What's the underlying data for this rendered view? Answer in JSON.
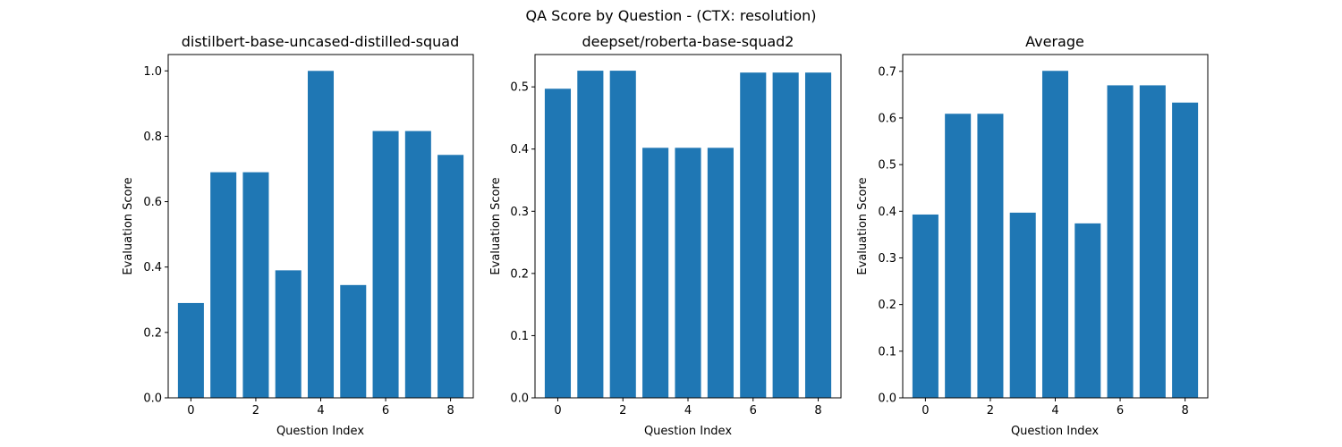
{
  "figure": {
    "suptitle": "QA Score by Question - (CTX: resolution)",
    "bar_color": "#1f77b4"
  },
  "chart_data": [
    {
      "type": "bar",
      "title": "distilbert-base-uncased-distilled-squad",
      "xlabel": "Question Index",
      "ylabel": "Evaluation Score",
      "categories": [
        0,
        1,
        2,
        3,
        4,
        5,
        6,
        7,
        8
      ],
      "values": [
        0.29,
        0.69,
        0.69,
        0.39,
        1.0,
        0.345,
        0.816,
        0.816,
        0.743
      ],
      "xlim": [
        -0.7,
        8.7
      ],
      "ylim": [
        0,
        1.05
      ],
      "xticks": [
        0,
        2,
        4,
        6,
        8
      ],
      "yticks": [
        0.0,
        0.2,
        0.4,
        0.6,
        0.8,
        1.0
      ],
      "ytick_labels": [
        "0.0",
        "0.2",
        "0.4",
        "0.6",
        "0.8",
        "1.0"
      ],
      "grid": false,
      "legend": false
    },
    {
      "type": "bar",
      "title": "deepset/roberta-base-squad2",
      "xlabel": "Question Index",
      "ylabel": "Evaluation Score",
      "categories": [
        0,
        1,
        2,
        3,
        4,
        5,
        6,
        7,
        8
      ],
      "values": [
        0.497,
        0.526,
        0.526,
        0.402,
        0.402,
        0.402,
        0.523,
        0.523,
        0.523
      ],
      "xlim": [
        -0.7,
        8.7
      ],
      "ylim": [
        0,
        0.552
      ],
      "xticks": [
        0,
        2,
        4,
        6,
        8
      ],
      "yticks": [
        0.0,
        0.1,
        0.2,
        0.3,
        0.4,
        0.5
      ],
      "ytick_labels": [
        "0.0",
        "0.1",
        "0.2",
        "0.3",
        "0.4",
        "0.5"
      ],
      "grid": false,
      "legend": false
    },
    {
      "type": "bar",
      "title": "Average",
      "xlabel": "Question Index",
      "ylabel": "Evaluation Score",
      "categories": [
        0,
        1,
        2,
        3,
        4,
        5,
        6,
        7,
        8
      ],
      "values": [
        0.393,
        0.609,
        0.609,
        0.397,
        0.701,
        0.374,
        0.67,
        0.67,
        0.633
      ],
      "xlim": [
        -0.7,
        8.7
      ],
      "ylim": [
        0,
        0.736
      ],
      "xticks": [
        0,
        2,
        4,
        6,
        8
      ],
      "yticks": [
        0.0,
        0.1,
        0.2,
        0.3,
        0.4,
        0.5,
        0.6,
        0.7
      ],
      "ytick_labels": [
        "0.0",
        "0.1",
        "0.2",
        "0.3",
        "0.4",
        "0.5",
        "0.6",
        "0.7"
      ],
      "grid": false,
      "legend": false
    }
  ]
}
